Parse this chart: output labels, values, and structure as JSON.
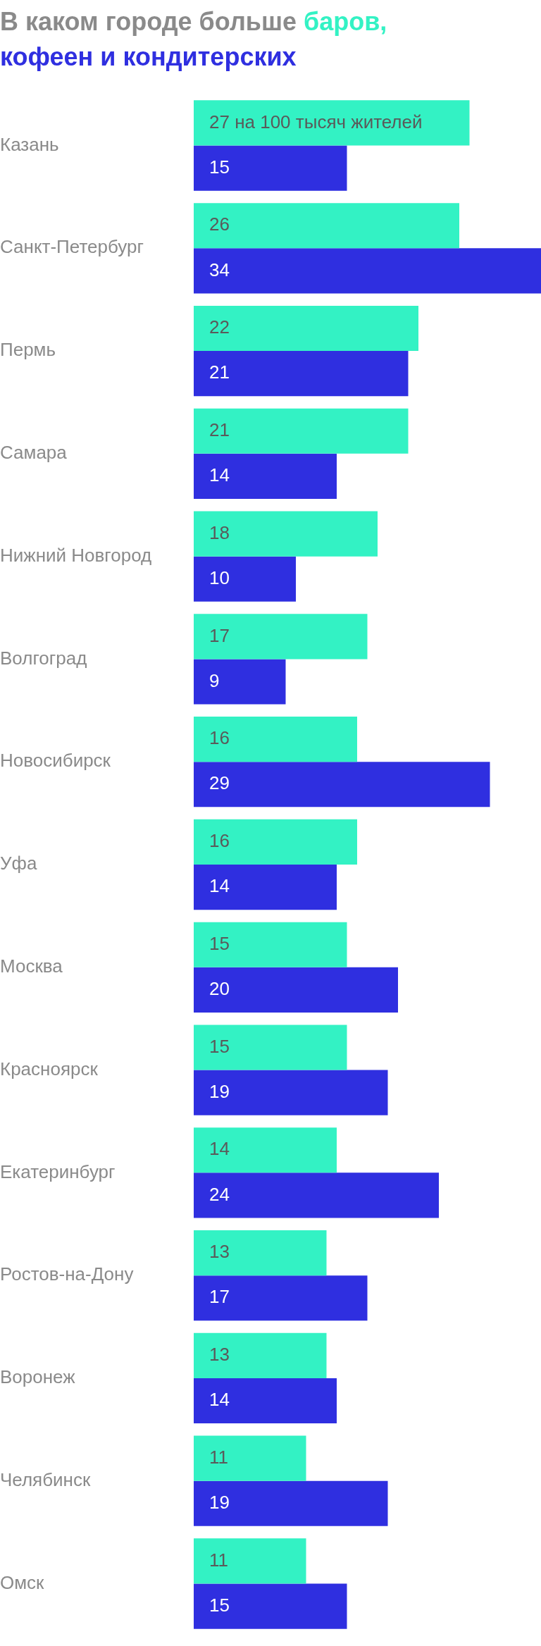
{
  "chart_data": {
    "type": "bar",
    "orientation": "horizontal",
    "title": "В каком городе больше",
    "categories": [
      "Казань",
      "Санкт-Петербург",
      "Пермь",
      "Самара",
      "Нижний Новгород",
      "Волгоград",
      "Новосибирск",
      "Уфа",
      "Москва",
      "Красноярск",
      "Екатеринбург",
      "Ростов-на-Дону",
      "Воронеж",
      "Челябинск",
      "Омск"
    ],
    "series": [
      {
        "name": "баров,",
        "color": "#33f2c4",
        "values": [
          27,
          26,
          22,
          21,
          18,
          17,
          16,
          16,
          15,
          15,
          14,
          13,
          13,
          11,
          11
        ],
        "value_labels": [
          "27 на 100 тысяч жителей",
          "26",
          "22",
          "21",
          "18",
          "17",
          "16",
          "16",
          "15",
          "15",
          "14",
          "13",
          "13",
          "11",
          "11"
        ]
      },
      {
        "name": "кофеен и кондитерских",
        "color": "#2f2fe0",
        "values": [
          15,
          34,
          21,
          14,
          10,
          9,
          29,
          14,
          20,
          19,
          24,
          17,
          14,
          19,
          15
        ],
        "value_labels": [
          "15",
          "34",
          "21",
          "14",
          "10",
          "9",
          "29",
          "14",
          "20",
          "19",
          "24",
          "17",
          "14",
          "19",
          "15"
        ]
      }
    ],
    "xlim": [
      0,
      34
    ],
    "tick_labels": "y",
    "legend": false
  }
}
